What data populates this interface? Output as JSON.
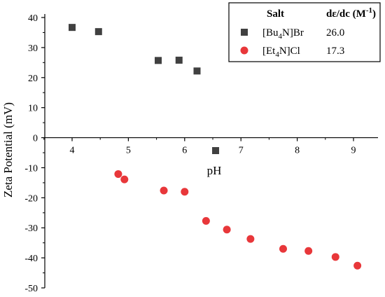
{
  "chart_data": {
    "type": "scatter",
    "xlabel": "pH",
    "ylabel": "Zeta Potential (mV)",
    "xlim": [
      3.3,
      9.4
    ],
    "ylim": [
      -50,
      40
    ],
    "xticks": [
      "4",
      "5",
      "6",
      "7",
      "8",
      "9"
    ],
    "xtick_values": [
      4,
      5,
      6,
      7,
      8,
      9
    ],
    "yticks": [
      "40",
      "30",
      "20",
      "10",
      "0",
      "-10",
      "-20",
      "-30",
      "-40",
      "-50"
    ],
    "ytick_values": [
      40,
      30,
      20,
      10,
      0,
      -10,
      -20,
      -30,
      -40,
      -50
    ],
    "legend": {
      "placement": "top-right",
      "header_label": "Salt",
      "header_value": "dε/dc (M",
      "header_value_sup": "-1",
      "header_value_close": ")"
    },
    "series": [
      {
        "name_parts": [
          "[Bu",
          "4",
          "N]Br"
        ],
        "value_label": "26.0",
        "marker": "square",
        "color": "#404040",
        "x": [
          4.0,
          4.47,
          5.53,
          5.9,
          6.22,
          6.55
        ],
        "y": [
          36.7,
          35.3,
          25.7,
          25.8,
          22.2,
          -4.3
        ]
      },
      {
        "name_parts": [
          "[Et",
          "4",
          "N]Cl"
        ],
        "value_label": "17.3",
        "marker": "circle",
        "color": "#e8373a",
        "x": [
          4.82,
          4.93,
          5.63,
          6.0,
          6.38,
          6.75,
          7.17,
          7.75,
          8.2,
          8.68,
          9.07
        ],
        "y": [
          -12.1,
          -13.9,
          -17.6,
          -18.0,
          -27.7,
          -30.6,
          -33.7,
          -37.0,
          -37.7,
          -39.7,
          -42.6
        ]
      }
    ]
  }
}
